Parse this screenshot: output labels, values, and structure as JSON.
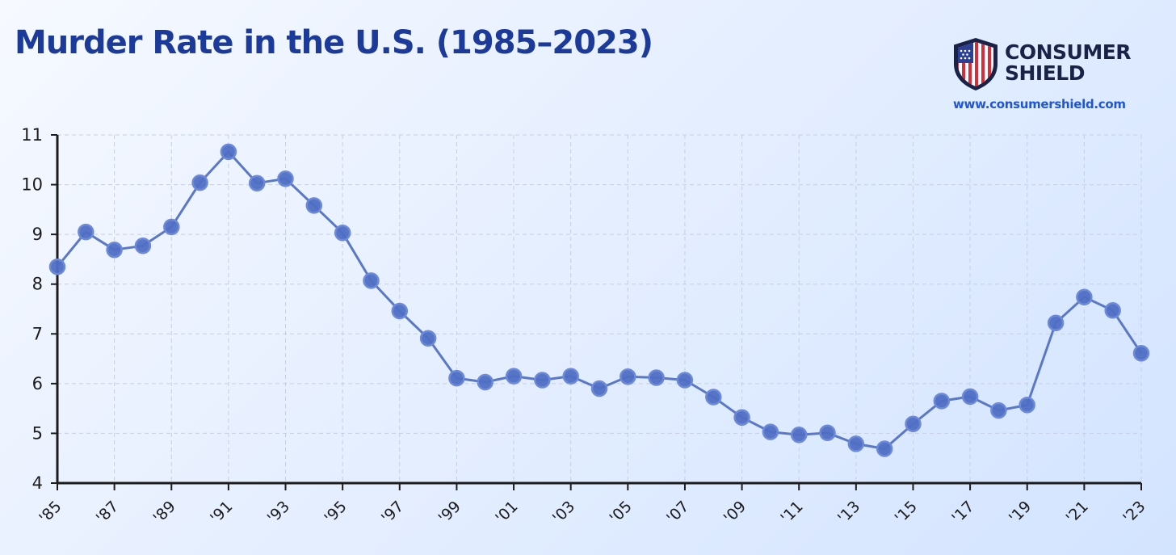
{
  "header": {
    "title": "Murder Rate in the U.S. (1985–2023)"
  },
  "brand": {
    "name_line1": "CONSUMER",
    "name_line2": "SHIELD",
    "url": "www.consumershield.com",
    "logo_icon": "us-flag-shield-icon"
  },
  "colors": {
    "title": "#1b3a9a",
    "line": "#5a78c8",
    "marker": "#4f6ec4",
    "grid": "#c5cfe0",
    "url": "#1e56d8"
  },
  "chart_data": {
    "type": "line",
    "title": "Murder Rate in the U.S. (1985–2023)",
    "xlabel": "",
    "ylabel": "",
    "x": [
      1985,
      1986,
      1987,
      1988,
      1989,
      1990,
      1991,
      1992,
      1993,
      1994,
      1995,
      1996,
      1997,
      1998,
      1999,
      2000,
      2001,
      2002,
      2003,
      2004,
      2005,
      2006,
      2007,
      2008,
      2009,
      2010,
      2011,
      2012,
      2013,
      2014,
      2015,
      2016,
      2017,
      2018,
      2019,
      2020,
      2021,
      2022,
      2023
    ],
    "values": [
      8.35,
      9.05,
      8.69,
      8.77,
      9.15,
      10.04,
      10.66,
      10.03,
      10.12,
      9.58,
      9.03,
      8.07,
      7.46,
      6.91,
      6.11,
      6.03,
      6.15,
      6.07,
      6.15,
      5.9,
      6.14,
      6.12,
      6.07,
      5.73,
      5.32,
      5.03,
      4.97,
      5.01,
      4.79,
      4.69,
      5.19,
      5.65,
      5.74,
      5.46,
      5.57,
      7.22,
      7.74,
      7.47,
      6.61
    ],
    "xlim": [
      1985,
      2023
    ],
    "ylim": [
      4,
      11
    ],
    "yticks": [
      "4",
      "5",
      "6",
      "7",
      "8",
      "9",
      "10",
      "11"
    ],
    "xticks": [
      {
        "value": 1985,
        "label": "'85"
      },
      {
        "value": 1987,
        "label": "'87"
      },
      {
        "value": 1989,
        "label": "'89"
      },
      {
        "value": 1991,
        "label": "'91"
      },
      {
        "value": 1993,
        "label": "'93"
      },
      {
        "value": 1995,
        "label": "'95"
      },
      {
        "value": 1997,
        "label": "'97"
      },
      {
        "value": 1999,
        "label": "'99"
      },
      {
        "value": 2001,
        "label": "'01"
      },
      {
        "value": 2003,
        "label": "'03"
      },
      {
        "value": 2005,
        "label": "'05"
      },
      {
        "value": 2007,
        "label": "'07"
      },
      {
        "value": 2009,
        "label": "'09"
      },
      {
        "value": 2011,
        "label": "'11"
      },
      {
        "value": 2013,
        "label": "'13"
      },
      {
        "value": 2015,
        "label": "'15"
      },
      {
        "value": 2017,
        "label": "'17"
      },
      {
        "value": 2019,
        "label": "'19"
      },
      {
        "value": 2021,
        "label": "'21"
      },
      {
        "value": 2023,
        "label": "'23"
      }
    ],
    "grid": true,
    "grid_style": "dashed",
    "legend": "none"
  }
}
